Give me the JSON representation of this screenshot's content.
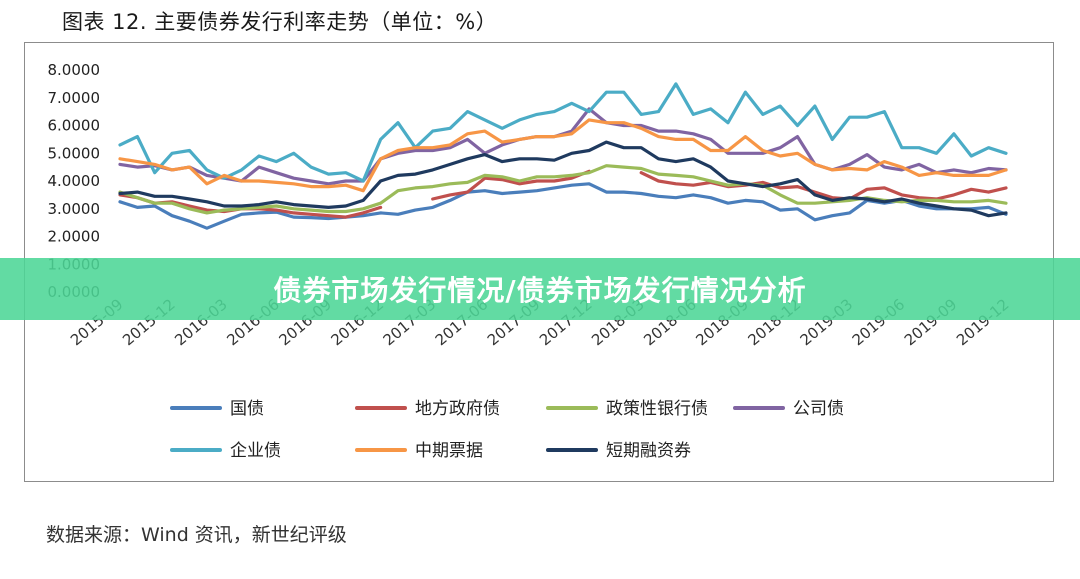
{
  "header": {
    "title": "图表 12. 主要债券发行利率走势（单位：%）"
  },
  "overlay": {
    "banner_text": "债券市场发行情况/债券市场发行情况分析"
  },
  "footer": {
    "source": "数据来源：Wind 资讯，新世纪评级"
  },
  "colors": {
    "国债": "#4a7ebb",
    "地方政府债": "#c0504d",
    "政策性银行债": "#9bbb59",
    "公司债": "#8064a2",
    "企业债": "#4bacc6",
    "中期票据": "#f79646",
    "短期融资券": "#1f3a5f",
    "banner": "#4cd696"
  },
  "chart_data": {
    "type": "line",
    "title": "",
    "xlabel": "",
    "ylabel": "",
    "ylim": [
      0,
      8
    ],
    "y_ticks": [
      "8.0000",
      "7.0000",
      "6.0000",
      "5.0000",
      "4.0000",
      "3.0000",
      "2.0000",
      "1.0000",
      "0.0000"
    ],
    "x_tick_labels": [
      "2015-09",
      "2015-12",
      "2016-03",
      "2016-06",
      "2016-09",
      "2016-12",
      "2017-03",
      "2017-06",
      "2017-09",
      "2017-12",
      "2018-03",
      "2018-06",
      "2018-09",
      "2018-12",
      "2019-03",
      "2019-06",
      "2019-09",
      "2019-12"
    ],
    "grid": false,
    "legend_position": "bottom",
    "x": [
      "2015-09",
      "2015-10",
      "2015-11",
      "2015-12",
      "2016-01",
      "2016-02",
      "2016-03",
      "2016-04",
      "2016-05",
      "2016-06",
      "2016-07",
      "2016-08",
      "2016-09",
      "2016-10",
      "2016-11",
      "2016-12",
      "2017-01",
      "2017-02",
      "2017-03",
      "2017-04",
      "2017-05",
      "2017-06",
      "2017-07",
      "2017-08",
      "2017-09",
      "2017-10",
      "2017-11",
      "2017-12",
      "2018-01",
      "2018-02",
      "2018-03",
      "2018-04",
      "2018-05",
      "2018-06",
      "2018-07",
      "2018-08",
      "2018-09",
      "2018-10",
      "2018-11",
      "2018-12",
      "2019-01",
      "2019-02",
      "2019-03",
      "2019-04",
      "2019-05",
      "2019-06",
      "2019-07",
      "2019-08",
      "2019-09",
      "2019-10",
      "2019-11",
      "2019-12"
    ],
    "series": [
      {
        "name": "国债",
        "values": [
          3.25,
          3.05,
          3.1,
          2.75,
          2.55,
          2.3,
          2.55,
          2.8,
          2.85,
          2.88,
          2.7,
          2.68,
          2.65,
          2.7,
          2.75,
          2.85,
          2.8,
          2.95,
          3.05,
          3.3,
          3.6,
          3.65,
          3.55,
          3.6,
          3.65,
          3.75,
          3.85,
          3.9,
          3.6,
          3.6,
          3.55,
          3.45,
          3.4,
          3.5,
          3.4,
          3.2,
          3.3,
          3.25,
          2.95,
          3.0,
          2.6,
          2.75,
          2.85,
          3.3,
          3.2,
          3.3,
          3.1,
          3.0,
          3.0,
          3.0,
          3.05,
          2.8
        ]
      },
      {
        "name": "地方政府债",
        "values": [
          3.5,
          3.4,
          3.2,
          3.25,
          3.1,
          2.95,
          2.9,
          3.0,
          3.0,
          2.95,
          2.85,
          2.8,
          2.75,
          2.7,
          2.85,
          3.05,
          null,
          null,
          3.35,
          3.5,
          3.6,
          4.1,
          4.05,
          3.9,
          4.0,
          4.0,
          4.1,
          4.35,
          null,
          null,
          4.3,
          4.0,
          3.9,
          3.85,
          3.95,
          3.8,
          3.85,
          3.95,
          3.75,
          3.8,
          3.6,
          3.4,
          3.35,
          3.7,
          3.75,
          3.5,
          3.4,
          3.35,
          3.5,
          3.7,
          3.6,
          3.75
        ]
      },
      {
        "name": "政策性银行债",
        "values": [
          3.6,
          3.4,
          3.2,
          3.2,
          3.0,
          2.85,
          2.95,
          3.0,
          3.05,
          3.1,
          3.0,
          2.95,
          2.9,
          2.9,
          3.0,
          3.2,
          3.65,
          3.75,
          3.8,
          3.9,
          3.95,
          4.2,
          4.15,
          4.0,
          4.15,
          4.15,
          4.2,
          4.3,
          4.55,
          4.5,
          4.45,
          4.25,
          4.2,
          4.15,
          4.0,
          3.85,
          3.9,
          3.85,
          3.5,
          3.2,
          3.2,
          3.25,
          3.3,
          3.4,
          3.3,
          3.25,
          3.3,
          3.3,
          3.25,
          3.25,
          3.3,
          3.2
        ]
      },
      {
        "name": "公司债",
        "values": [
          4.6,
          4.5,
          4.55,
          4.4,
          4.5,
          4.2,
          4.1,
          4.0,
          4.5,
          4.3,
          4.1,
          4.0,
          3.9,
          4.0,
          4.0,
          4.8,
          5.0,
          5.1,
          5.1,
          5.2,
          5.5,
          5.0,
          5.3,
          5.5,
          5.6,
          5.6,
          5.8,
          6.6,
          6.1,
          6.0,
          6.0,
          5.8,
          5.8,
          5.7,
          5.5,
          5.0,
          5.0,
          5.0,
          5.2,
          5.6,
          4.6,
          4.4,
          4.6,
          4.95,
          4.5,
          4.4,
          4.6,
          4.3,
          4.4,
          4.3,
          4.45,
          4.4
        ]
      },
      {
        "name": "企业债",
        "values": [
          5.3,
          5.6,
          4.3,
          5.0,
          5.1,
          4.4,
          4.1,
          4.4,
          4.9,
          4.7,
          5.0,
          4.5,
          4.25,
          4.3,
          4.0,
          5.5,
          6.1,
          5.2,
          5.8,
          5.9,
          6.5,
          6.2,
          5.9,
          6.2,
          6.4,
          6.5,
          6.8,
          6.5,
          7.2,
          7.2,
          6.4,
          6.5,
          7.5,
          6.4,
          6.6,
          6.1,
          7.2,
          6.4,
          6.7,
          6.0,
          6.7,
          5.5,
          6.3,
          6.3,
          6.5,
          5.2,
          5.2,
          5.0,
          5.7,
          4.9,
          5.2,
          5.0
        ]
      },
      {
        "name": "中期票据",
        "values": [
          4.8,
          4.7,
          4.6,
          4.4,
          4.5,
          3.9,
          4.2,
          4.0,
          4.0,
          3.95,
          3.9,
          3.8,
          3.8,
          3.85,
          3.65,
          4.8,
          5.1,
          5.2,
          5.2,
          5.3,
          5.7,
          5.8,
          5.4,
          5.5,
          5.6,
          5.6,
          5.7,
          6.2,
          6.1,
          6.1,
          5.9,
          5.6,
          5.5,
          5.5,
          5.1,
          5.1,
          5.6,
          5.1,
          4.9,
          5.0,
          4.6,
          4.4,
          4.45,
          4.4,
          4.7,
          4.5,
          4.2,
          4.3,
          4.2,
          4.2,
          4.2,
          4.4
        ]
      },
      {
        "name": "短期融资券",
        "values": [
          3.55,
          3.6,
          3.45,
          3.45,
          3.35,
          3.25,
          3.1,
          3.1,
          3.15,
          3.25,
          3.15,
          3.1,
          3.05,
          3.1,
          3.3,
          4.0,
          4.2,
          4.25,
          4.4,
          4.6,
          4.8,
          4.95,
          4.7,
          4.8,
          4.8,
          4.75,
          5.0,
          5.1,
          5.4,
          5.2,
          5.2,
          4.8,
          4.7,
          4.8,
          4.5,
          4.0,
          3.9,
          3.8,
          3.9,
          4.05,
          3.5,
          3.3,
          3.4,
          3.35,
          3.25,
          3.35,
          3.2,
          3.1,
          3.0,
          2.95,
          2.75,
          2.85
        ]
      }
    ]
  }
}
